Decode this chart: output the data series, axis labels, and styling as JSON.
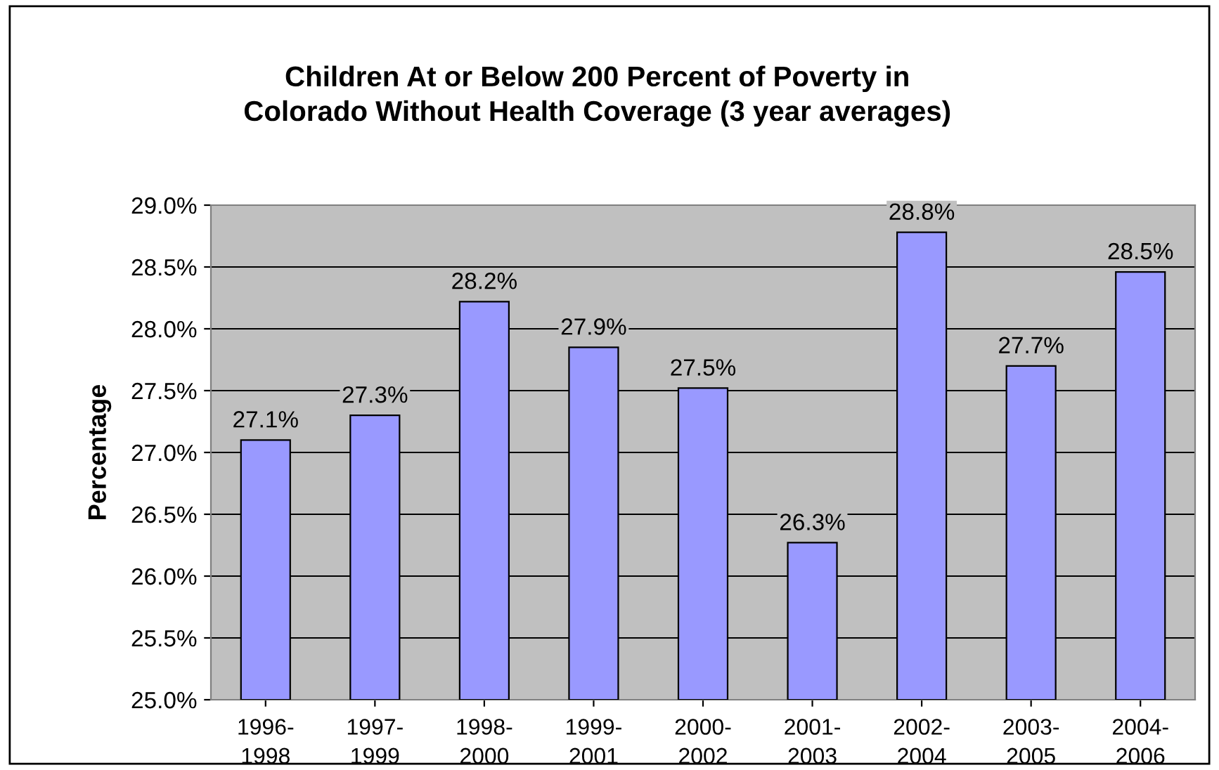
{
  "chart_data": {
    "type": "bar",
    "title": "Children At or Below 200 Percent of Poverty in\nColorado Without Health Coverage (3 year averages)",
    "ylabel": "Percentage",
    "categories": [
      "1996-\n1998",
      "1997-\n1999",
      "1998-\n2000",
      "1999-\n2001",
      "2000-\n2002",
      "2001-\n2003",
      "2002-\n2004",
      "2003-\n2005",
      "2004-\n2006"
    ],
    "values": [
      27.1,
      27.3,
      28.22,
      27.85,
      27.52,
      26.27,
      28.78,
      27.7,
      28.46
    ],
    "value_labels": [
      "27.1%",
      "27.3%",
      "28.2%",
      "27.9%",
      "27.5%",
      "26.3%",
      "28.8%",
      "27.7%",
      "28.5%"
    ],
    "color": "#9999ff",
    "ylim": [
      25,
      29
    ],
    "yticks": [
      {
        "value": 25,
        "label": "25.0%"
      },
      {
        "value": 25.5,
        "label": "25.5%"
      },
      {
        "value": 26,
        "label": "26.0%"
      },
      {
        "value": 26.5,
        "label": "26.5%"
      },
      {
        "value": 27,
        "label": "27.0%"
      },
      {
        "value": 27.5,
        "label": "27.5%"
      },
      {
        "value": 28,
        "label": "28.0%"
      },
      {
        "value": 28.5,
        "label": "28.5%"
      },
      {
        "value": 29,
        "label": "29.0%"
      }
    ],
    "grid": "y",
    "legend": false
  }
}
